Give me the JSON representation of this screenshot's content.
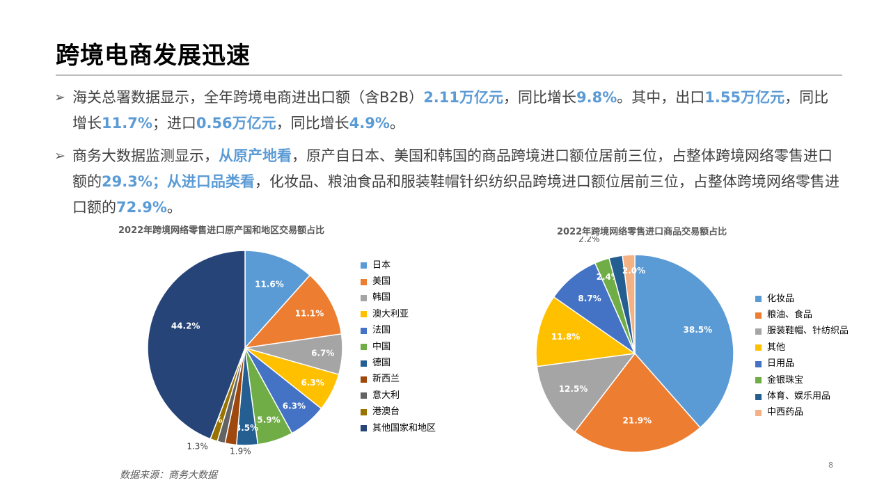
{
  "title": "跨境电商发展迅速",
  "bullets": [
    {
      "segments": [
        {
          "t": "海关总署数据显示，全年跨境电商进出口额（含B2B）",
          "hl": false
        },
        {
          "t": "2.11万亿元",
          "hl": true
        },
        {
          "t": "，同比增长",
          "hl": false
        },
        {
          "t": "9.8%",
          "hl": true
        },
        {
          "t": "。其中，出口",
          "hl": false
        },
        {
          "t": "1.55万亿元",
          "hl": true
        },
        {
          "t": "，同比增长",
          "hl": false
        },
        {
          "t": "11.7%",
          "hl": true
        },
        {
          "t": "；进口",
          "hl": false
        },
        {
          "t": "0.56万亿元",
          "hl": true
        },
        {
          "t": "，同比增长",
          "hl": false
        },
        {
          "t": "4.9%",
          "hl": true
        },
        {
          "t": "。",
          "hl": false
        }
      ]
    },
    {
      "segments": [
        {
          "t": "商务大数据监测显示，",
          "hl": false
        },
        {
          "t": "从原产地看",
          "hl": true
        },
        {
          "t": "，原产自日本、美国和韩国的商品跨境进口额位居前三位，占整体跨境网络零售进口额的",
          "hl": false
        },
        {
          "t": "29.3%；从进口品类看",
          "hl": true
        },
        {
          "t": "，化妆品、粮油食品和服装鞋帽针织纺织品跨境进口额位居前三位，占整体跨境网络零售进口额的",
          "hl": false
        },
        {
          "t": "72.9%",
          "hl": true
        },
        {
          "t": "。",
          "hl": false
        }
      ]
    }
  ],
  "chart_data": [
    {
      "type": "pie",
      "title": "2022年跨境网络零售进口原产国和地区交易额占比",
      "categories": [
        "日本",
        "美国",
        "韩国",
        "澳大利亚",
        "法国",
        "中国",
        "德国",
        "新西兰",
        "意大利",
        "港澳台",
        "其他国家和地区"
      ],
      "values": [
        11.6,
        11.1,
        6.7,
        6.3,
        6.3,
        5.9,
        3.5,
        1.9,
        1.3,
        1.2,
        44.2
      ],
      "labels": [
        "11.6%",
        "11.1%",
        "6.7%",
        "6.3%",
        "6.3%",
        "5.9%",
        "3.5%",
        "1.9%",
        "1.3%",
        "1.2%",
        "44.2%"
      ],
      "colors": [
        "#5b9bd5",
        "#ed7d31",
        "#a5a5a5",
        "#ffc000",
        "#4472c4",
        "#70ad47",
        "#255e91",
        "#9e480e",
        "#636363",
        "#997300",
        "#264478"
      ],
      "legend": "right"
    },
    {
      "type": "pie",
      "title": "2022年跨境网络零售进口商品交易额占比",
      "categories": [
        "化妆品",
        "粮油、食品",
        "服装鞋帽、针纺织品",
        "其他",
        "日用品",
        "金银珠宝",
        "体育、娱乐用品",
        "中西药品"
      ],
      "values": [
        38.5,
        21.9,
        12.5,
        11.8,
        8.7,
        2.4,
        2.2,
        2.0
      ],
      "labels": [
        "38.5%",
        "21.9%",
        "12.5%",
        "11.8%",
        "8.7%",
        "2.4%",
        "2.2%",
        "2.0%"
      ],
      "colors": [
        "#5b9bd5",
        "#ed7d31",
        "#a5a5a5",
        "#ffc000",
        "#4472c4",
        "#70ad47",
        "#255e91",
        "#f4b183"
      ],
      "legend": "right"
    }
  ],
  "source": "数据来源：商务大数据",
  "page_number": "8"
}
